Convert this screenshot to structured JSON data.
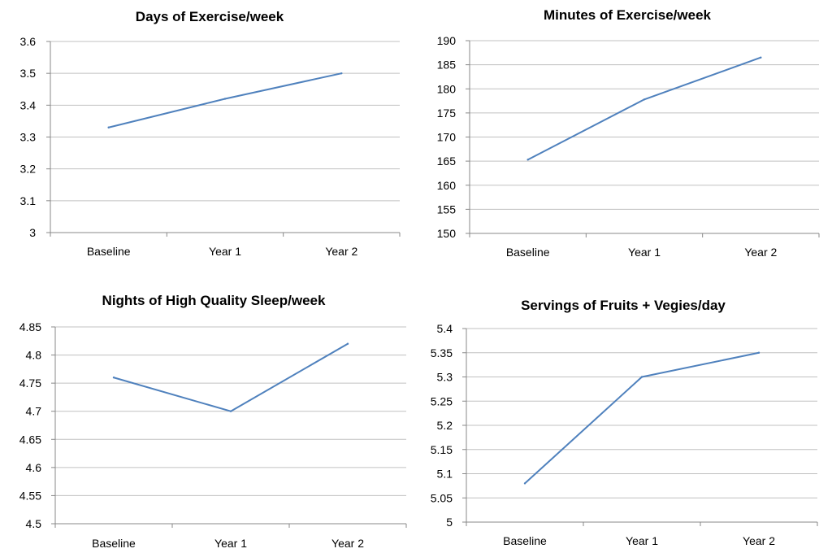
{
  "chart_data": [
    {
      "type": "line",
      "title": "Days of Exercise/week",
      "xlabel": "",
      "ylabel": "",
      "categories": [
        "Baseline",
        "Year 1",
        "Year 2"
      ],
      "series": [
        {
          "values": [
            3.33,
            3.42,
            3.5
          ]
        }
      ],
      "ylim": [
        3,
        3.6
      ],
      "yticks": [
        "3",
        "3.1",
        "3.2",
        "3.3",
        "3.4",
        "3.5",
        "3.6"
      ],
      "grid": true,
      "legend": "none",
      "color": "#4f81bd"
    },
    {
      "type": "line",
      "title": "Minutes of Exercise/week",
      "xlabel": "",
      "ylabel": "",
      "categories": [
        "Baseline",
        "Year 1",
        "Year 2"
      ],
      "series": [
        {
          "values": [
            165.3,
            177.8,
            186.5
          ]
        }
      ],
      "ylim": [
        150,
        190
      ],
      "yticks": [
        "150",
        "155",
        "160",
        "165",
        "170",
        "175",
        "180",
        "185",
        "190"
      ],
      "grid": true,
      "legend": "none",
      "color": "#4f81bd"
    },
    {
      "type": "line",
      "title": "Nights of High Quality Sleep/week",
      "xlabel": "",
      "ylabel": "",
      "categories": [
        "Baseline",
        "Year 1",
        "Year 2"
      ],
      "series": [
        {
          "values": [
            4.76,
            4.7,
            4.82
          ]
        }
      ],
      "ylim": [
        4.5,
        4.85
      ],
      "yticks": [
        "4.5",
        "4.55",
        "4.6",
        "4.65",
        "4.7",
        "4.75",
        "4.8",
        "4.85"
      ],
      "grid": true,
      "legend": "none",
      "color": "#4f81bd"
    },
    {
      "type": "line",
      "title": "Servings of Fruits + Vegies/day",
      "xlabel": "",
      "ylabel": "",
      "categories": [
        "Baseline",
        "Year 1",
        "Year 2"
      ],
      "series": [
        {
          "values": [
            5.08,
            5.3,
            5.35
          ]
        }
      ],
      "ylim": [
        5,
        5.4
      ],
      "yticks": [
        "5",
        "5.05",
        "5.1",
        "5.15",
        "5.2",
        "5.25",
        "5.3",
        "5.35",
        "5.4"
      ],
      "grid": true,
      "legend": "none",
      "color": "#4f81bd"
    }
  ]
}
